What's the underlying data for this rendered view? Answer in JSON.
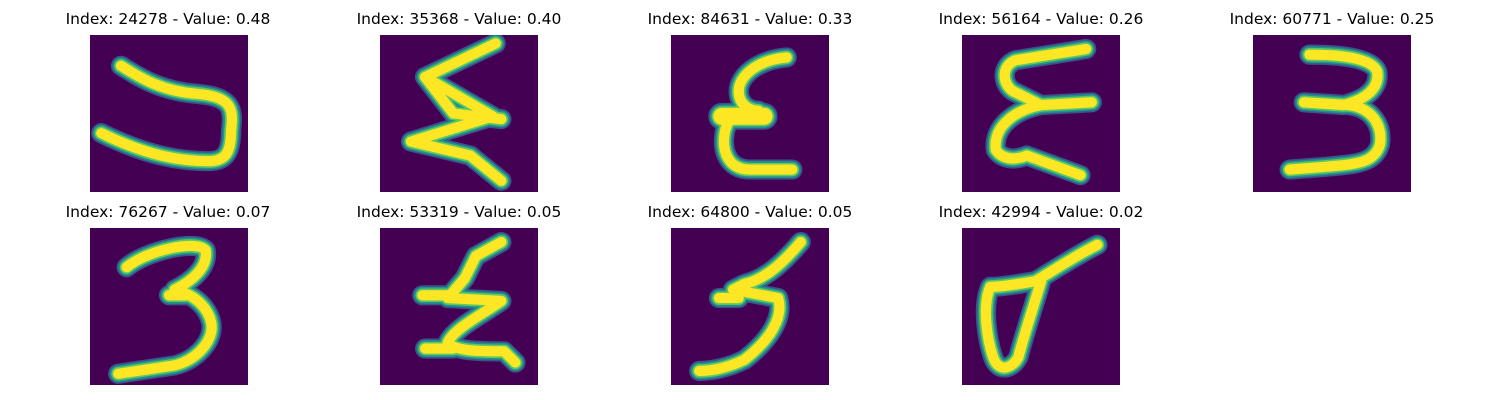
{
  "palette": {
    "background": "#440154",
    "stroke_core": "#fde725",
    "stroke_mid": "#5ec962",
    "stroke_edge": "#21918c",
    "stroke_halo": "#3b528b"
  },
  "panels": [
    {
      "title": "Index: 24278 - Value: 0.48",
      "glyph": "U"
    },
    {
      "title": "Index: 35368 - Value: 0.40",
      "glyph": "W"
    },
    {
      "title": "Index: 84631 - Value: 0.33",
      "glyph": "ε"
    },
    {
      "title": "Index: 56164 - Value: 0.26",
      "glyph": "Σ"
    },
    {
      "title": "Index: 60771 - Value: 0.25",
      "glyph": "3"
    },
    {
      "title": "Index: 76267 - Value: 0.07",
      "glyph": "3"
    },
    {
      "title": "Index: 53319 - Value: 0.05",
      "glyph": "Ƶ"
    },
    {
      "title": "Index: 64800 - Value: 0.05",
      "glyph": "5"
    },
    {
      "title": "Index: 42994 - Value: 0.02",
      "glyph": "σ"
    }
  ]
}
